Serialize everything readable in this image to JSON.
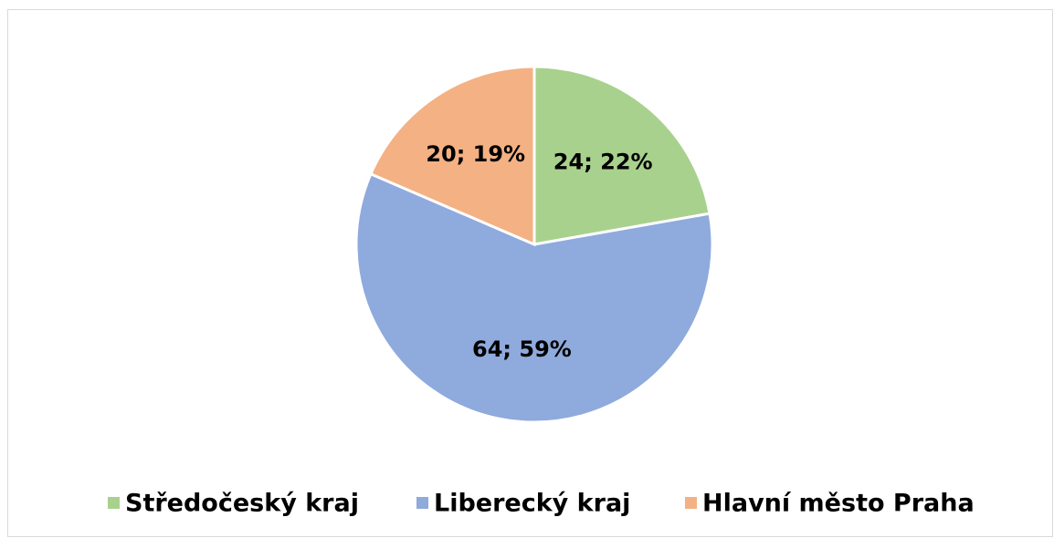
{
  "chart_data": {
    "type": "pie",
    "categories": [
      "Středočeský kraj",
      "Liberecký kraj",
      "Hlavní město Praha"
    ],
    "values": [
      24,
      64,
      20
    ],
    "value_labels": [
      "24; 22%",
      "64; 59%",
      "20; 19%"
    ],
    "colors": [
      "#a9d18e",
      "#8faadc",
      "#f4b183"
    ],
    "legend": "bottom"
  }
}
